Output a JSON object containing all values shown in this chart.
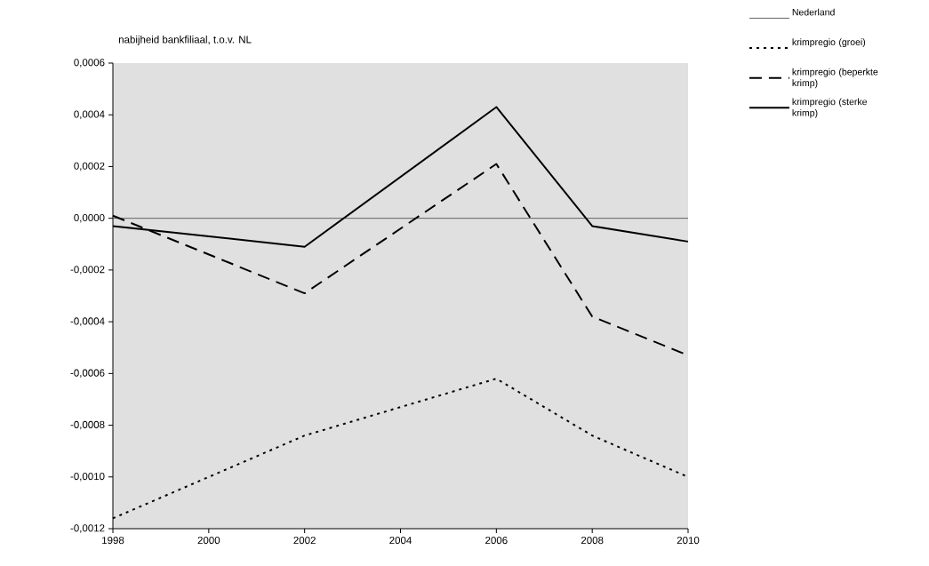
{
  "chart_data": {
    "type": "line",
    "title": "nabijheid bankfiliaal, t.o.v. NL",
    "x": [
      1998,
      2002,
      2006,
      2008,
      2010
    ],
    "xlim": [
      1998,
      2010
    ],
    "xticks": [
      1998,
      2000,
      2002,
      2004,
      2006,
      2008,
      2010
    ],
    "ylim": [
      -0.0012,
      0.0006
    ],
    "yticks": [
      {
        "value": -0.0012,
        "label": "-0,0012"
      },
      {
        "value": -0.001,
        "label": "-0,0010"
      },
      {
        "value": -0.0008,
        "label": "-0,0008"
      },
      {
        "value": -0.0006,
        "label": "-0,0006"
      },
      {
        "value": -0.0004,
        "label": "-0,0004"
      },
      {
        "value": -0.0002,
        "label": "-0,0002"
      },
      {
        "value": 0,
        "label": "0,0000"
      },
      {
        "value": 0.0002,
        "label": "0,0002"
      },
      {
        "value": 0.0004,
        "label": "0,0004"
      },
      {
        "value": 0.0006,
        "label": "0,0006"
      }
    ],
    "legend": "top right",
    "series": [
      {
        "name": "Nederland",
        "color": "#404040",
        "line_style": "solid",
        "values": [
          0,
          0,
          0,
          0,
          0
        ]
      },
      {
        "name": "krimpregio (groei)",
        "color": "#000000",
        "line_style": "dotted",
        "values": [
          -0.00116,
          -0.00084,
          -0.00062,
          -0.00084,
          -0.001
        ]
      },
      {
        "name": "krimpregio (beperkte krimp)",
        "color": "#000000",
        "line_style": "dashed",
        "values": [
          1e-05,
          -0.00029,
          0.00021,
          -0.00038,
          -0.00053
        ]
      },
      {
        "name": "krimpregio (sterke krimp)",
        "color": "#000000",
        "line_style": "solid",
        "values": [
          -3e-05,
          -0.00011,
          0.00043,
          -3e-05,
          -9e-05
        ]
      }
    ]
  }
}
